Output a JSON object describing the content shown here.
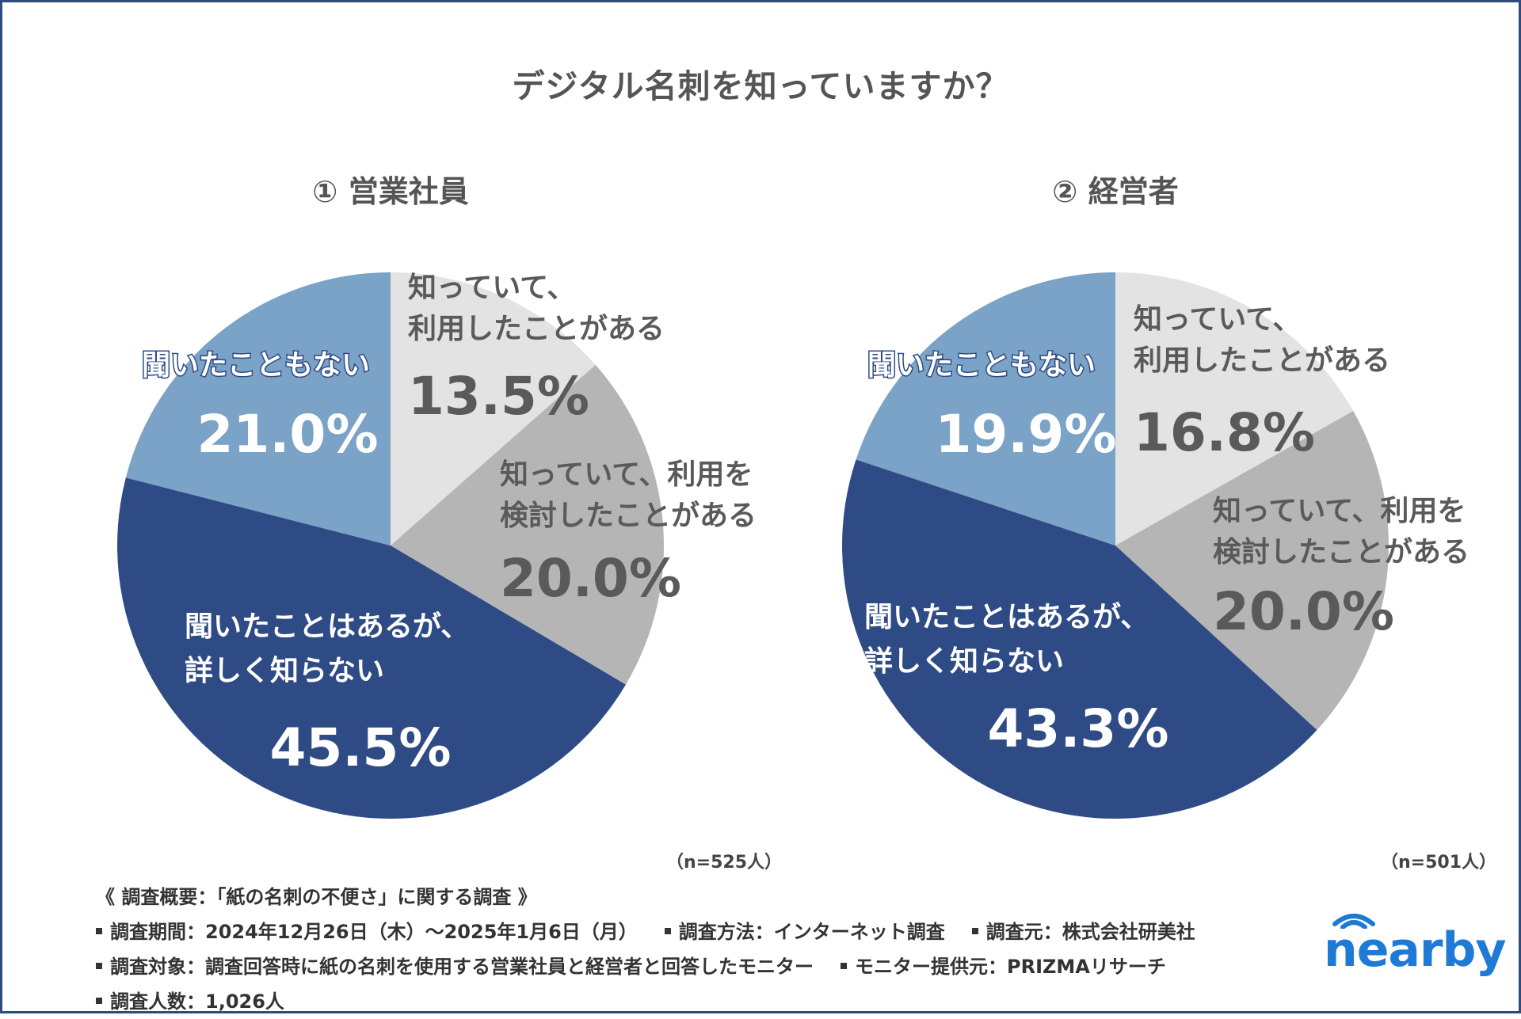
{
  "title": "デジタル名刺を知っていますか？",
  "chart_data": [
    {
      "type": "pie",
      "title": "① 営業社員",
      "n_label": "（n=525人）",
      "slices": [
        {
          "label": [
            "知っていて、",
            "利用したことがある"
          ],
          "value": 13.5,
          "value_text": "13.5%",
          "color": "#e3e3e3"
        },
        {
          "label": [
            "知っていて、利用を",
            "検討したことがある"
          ],
          "value": 20.0,
          "value_text": "20.0%",
          "color": "#b5b5b5"
        },
        {
          "label": [
            "聞いたことはあるが、",
            "詳しく知らない"
          ],
          "value": 45.5,
          "value_text": "45.5%",
          "color": "#2e4b85"
        },
        {
          "label": [
            "聞いたこともない"
          ],
          "value": 21.0,
          "value_text": "21.0%",
          "color": "#7ba2c7"
        }
      ]
    },
    {
      "type": "pie",
      "title": "② 経営者",
      "n_label": "（n=501人）",
      "slices": [
        {
          "label": [
            "知っていて、",
            "利用したことがある"
          ],
          "value": 16.8,
          "value_text": "16.8%",
          "color": "#e3e3e3"
        },
        {
          "label": [
            "知っていて、利用を",
            "検討したことがある"
          ],
          "value": 20.0,
          "value_text": "20.0%",
          "color": "#b5b5b5"
        },
        {
          "label": [
            "聞いたことはあるが、",
            "詳しく知らない"
          ],
          "value": 43.3,
          "value_text": "43.3%",
          "color": "#2e4b85"
        },
        {
          "label": [
            "聞いたこともない"
          ],
          "value": 19.9,
          "value_text": "19.9%",
          "color": "#7ba2c7"
        }
      ]
    }
  ],
  "footer": {
    "heading": "《 調査概要：「紙の名刺の不便さ」に関する調査 》",
    "period": "調査期間：2024年12月26日（木）～2025年1月6日（月）",
    "method": "調査方法：インターネット調査",
    "source": "調査元：株式会社研美社",
    "target": "調査対象：調査回答時に紙の名刺を使用する営業社員と経営者と回答したモニター",
    "provider": "モニター提供元：PRIZMAリサーチ",
    "count": "調査人数：1,026人"
  },
  "logo": {
    "text": "nearby",
    "color": "#1f7ad6"
  }
}
